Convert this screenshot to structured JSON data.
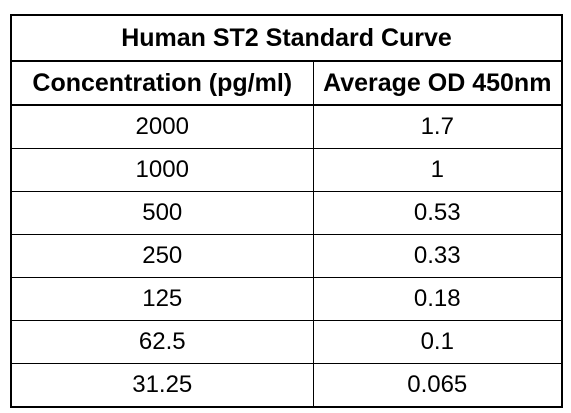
{
  "chart_data": {
    "type": "table",
    "title": "Human ST2 Standard Curve",
    "columns": [
      "Concentration (pg/ml)",
      "Average OD 450nm"
    ],
    "rows": [
      [
        "2000",
        "1.7"
      ],
      [
        "1000",
        "1"
      ],
      [
        "500",
        "0.53"
      ],
      [
        "250",
        "0.33"
      ],
      [
        "125",
        "0.18"
      ],
      [
        "62.5",
        "0.1"
      ],
      [
        "31.25",
        "0.065"
      ]
    ],
    "x": [
      2000,
      1000,
      500,
      250,
      125,
      62.5,
      31.25
    ],
    "y": [
      1.7,
      1,
      0.53,
      0.33,
      0.18,
      0.1,
      0.065
    ]
  }
}
